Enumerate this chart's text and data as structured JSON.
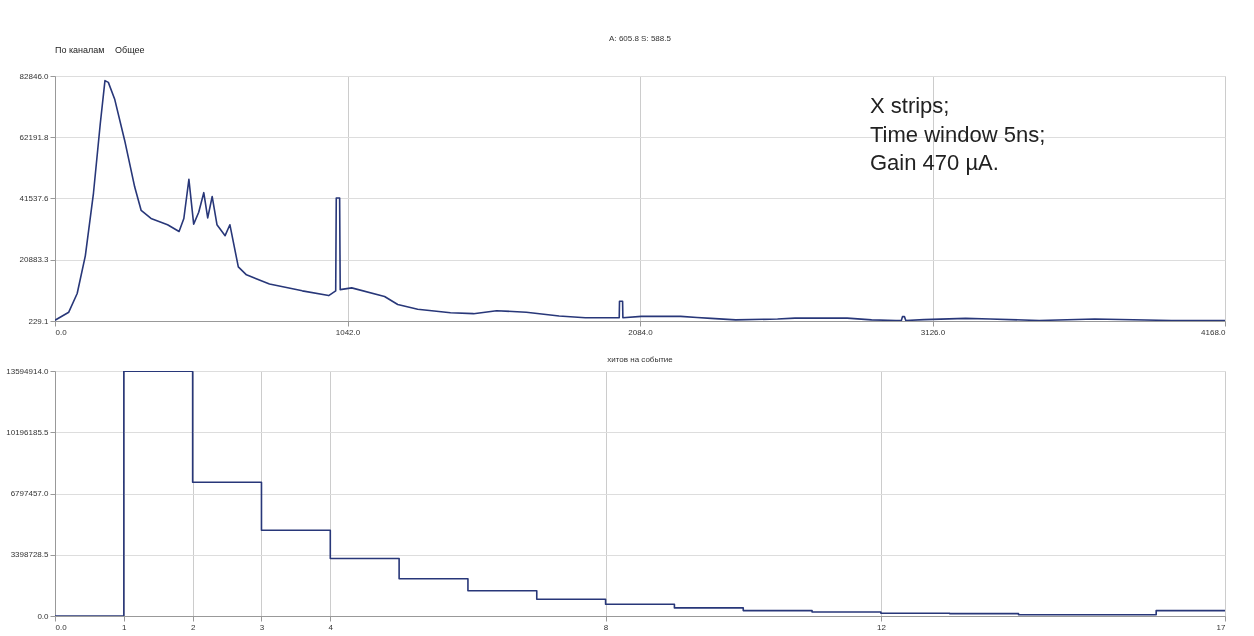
{
  "chart_data": [
    {
      "type": "line",
      "title": "A: 605.8 S: 588.5",
      "color": "#283779",
      "annotations": [
        "По каналам",
        "Общее",
        "X strips;\nTime window 5ns;\nGain 470 µA."
      ],
      "x": [
        0,
        49,
        79,
        108,
        137,
        161,
        178,
        190,
        213,
        248,
        284,
        307,
        342,
        401,
        442,
        459,
        477,
        494,
        512,
        530,
        544,
        560,
        577,
        606,
        623,
        653,
        682,
        764,
        881,
        975,
        1000,
        1002,
        1014,
        1016,
        1057,
        1174,
        1221,
        1292,
        1409,
        1491,
        1573,
        1679,
        1796,
        1889,
        2010,
        2011,
        2022,
        2023,
        2089,
        2229,
        2287,
        2337,
        2425,
        2574,
        2636,
        2822,
        2909,
        2996,
        3015,
        3019,
        3026,
        3031,
        3096,
        3244,
        3331,
        3506,
        3704,
        3978,
        4168
      ],
      "values": [
        500,
        3200,
        9500,
        22200,
        43300,
        66500,
        81300,
        80700,
        74900,
        61200,
        45400,
        37500,
        34800,
        32700,
        30400,
        34800,
        48000,
        32900,
        36900,
        43500,
        35000,
        42200,
        32700,
        29000,
        32700,
        18500,
        15800,
        12700,
        10400,
        8800,
        10400,
        41700,
        41700,
        10800,
        11400,
        8500,
        5800,
        4200,
        3000,
        2700,
        3700,
        3200,
        1900,
        1300,
        1300,
        6900,
        6900,
        1300,
        1800,
        1800,
        1400,
        1100,
        600,
        900,
        1200,
        1200,
        600,
        400,
        400,
        1700,
        1700,
        400,
        700,
        1100,
        900,
        400,
        900,
        400,
        400
      ],
      "xlim": [
        0,
        4168
      ],
      "ylim": [
        229.1,
        82846.0
      ],
      "xticks": [
        {
          "value": 0,
          "label": "0.0"
        },
        {
          "value": 1042,
          "label": "1042.0"
        },
        {
          "value": 2084,
          "label": "2084.0"
        },
        {
          "value": 3126,
          "label": "3126.0"
        },
        {
          "value": 4168,
          "label": "4168.0"
        }
      ],
      "yticks": [
        229.1,
        20883.3,
        41537.6,
        62191.8,
        {
          "value": 82846.0,
          "label": "82846.0"
        }
      ],
      "grid": true
    },
    {
      "type": "step",
      "title": "хитов на событие",
      "color": "#283779",
      "x": [
        0,
        1,
        2,
        3,
        4,
        5,
        6,
        7,
        8,
        9,
        10,
        11,
        12,
        13,
        14,
        15,
        16,
        17
      ],
      "values": [
        0,
        13590000,
        7420000,
        4760000,
        3190000,
        2070000,
        1400000,
        930000,
        650000,
        450000,
        300000,
        220000,
        150000,
        130000,
        70000,
        70000,
        300000,
        300000
      ],
      "xlim": [
        0,
        17
      ],
      "ylim": [
        0,
        13594914.0
      ],
      "xticks": [
        {
          "value": 0,
          "label": "0.0"
        },
        1,
        2,
        3,
        4,
        8,
        12,
        17
      ],
      "yticks": [
        {
          "value": 0,
          "label": "0.0"
        },
        3398728.5,
        {
          "value": 6797457.0,
          "label": "6797457.0"
        },
        10196185.5,
        {
          "value": 13594914.0,
          "label": "13594914.0"
        }
      ],
      "grid": true
    }
  ]
}
